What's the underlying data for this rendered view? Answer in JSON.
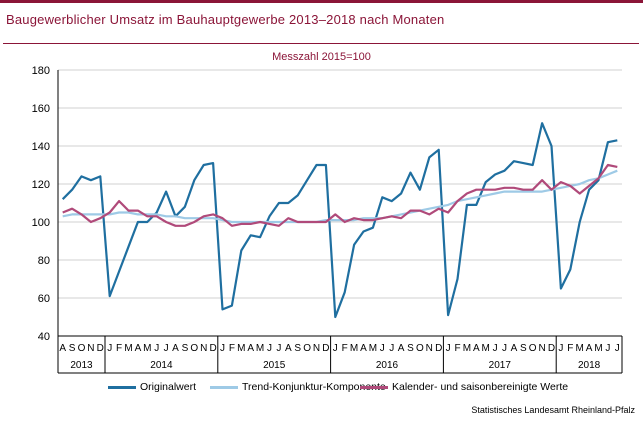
{
  "header": {
    "title": "Baugewerblicher Umsatz im Bauhauptgewerbe 2013–2018 nach Monaten",
    "subtitle": "Messzahl 2015=100",
    "source": "Statistisches Landesamt Rheinland-Pfalz"
  },
  "colors": {
    "accent": "#8b1538",
    "original": "#1f6fa0",
    "trend": "#9ecae6",
    "adjusted": "#b04a7a"
  },
  "chart_data": {
    "type": "line",
    "ylim": [
      40,
      180
    ],
    "yticks": [
      40,
      60,
      80,
      100,
      120,
      140,
      160,
      180
    ],
    "grid": true,
    "legend": "bottom",
    "x": [
      "A",
      "S",
      "O",
      "N",
      "D",
      "J",
      "F",
      "M",
      "A",
      "M",
      "J",
      "J",
      "A",
      "S",
      "O",
      "N",
      "D",
      "J",
      "F",
      "M",
      "A",
      "M",
      "J",
      "J",
      "A",
      "S",
      "O",
      "N",
      "D",
      "J",
      "F",
      "M",
      "A",
      "M",
      "J",
      "J",
      "A",
      "S",
      "O",
      "N",
      "D",
      "J",
      "F",
      "M",
      "A",
      "M",
      "J",
      "J",
      "A",
      "S",
      "O",
      "N",
      "D",
      "J",
      "F",
      "M",
      "A",
      "M",
      "J",
      "J"
    ],
    "years": [
      {
        "label": "2013",
        "start": 0,
        "end": 5
      },
      {
        "label": "2014",
        "start": 5,
        "end": 17
      },
      {
        "label": "2015",
        "start": 17,
        "end": 29
      },
      {
        "label": "2016",
        "start": 29,
        "end": 41
      },
      {
        "label": "2017",
        "start": 41,
        "end": 53
      },
      {
        "label": "2018",
        "start": 53,
        "end": 60
      }
    ],
    "series": [
      {
        "name": "Originalwert",
        "color": "#1f6fa0",
        "width": 2.2,
        "values": [
          112,
          117,
          124,
          122,
          124,
          61,
          74,
          87,
          100,
          100,
          105,
          116,
          103,
          108,
          122,
          130,
          131,
          54,
          56,
          85,
          93,
          92,
          103,
          110,
          110,
          114,
          122,
          130,
          130,
          50,
          63,
          88,
          95,
          97,
          113,
          111,
          115,
          126,
          117,
          134,
          138,
          51,
          70,
          109,
          109,
          121,
          125,
          127,
          132,
          131,
          130,
          152,
          140,
          65,
          75,
          100,
          117,
          122,
          142,
          143
        ]
      },
      {
        "name": "Trend-Konjunktur-Komponente",
        "color": "#9ecae6",
        "width": 2.2,
        "values": [
          103,
          104,
          104,
          104,
          104,
          104,
          105,
          105,
          104,
          104,
          104,
          103,
          103,
          102,
          102,
          102,
          102,
          101,
          100,
          100,
          100,
          100,
          100,
          100,
          100,
          100,
          100,
          100,
          101,
          101,
          101,
          101,
          102,
          102,
          102,
          103,
          104,
          105,
          106,
          107,
          108,
          109,
          111,
          112,
          113,
          114,
          115,
          116,
          116,
          116,
          116,
          116,
          117,
          118,
          119,
          120,
          122,
          123,
          125,
          127
        ]
      },
      {
        "name": "Kalender- und saisonbereinigte Werte",
        "color": "#b04a7a",
        "width": 2.2,
        "values": [
          105,
          107,
          104,
          100,
          102,
          105,
          111,
          106,
          106,
          103,
          103,
          100,
          98,
          98,
          100,
          103,
          104,
          102,
          98,
          99,
          99,
          100,
          99,
          98,
          102,
          100,
          100,
          100,
          100,
          104,
          100,
          102,
          101,
          101,
          102,
          103,
          102,
          106,
          106,
          104,
          107,
          105,
          111,
          115,
          117,
          117,
          117,
          118,
          118,
          117,
          117,
          122,
          117,
          121,
          119,
          115,
          119,
          123,
          130,
          129
        ]
      }
    ]
  }
}
